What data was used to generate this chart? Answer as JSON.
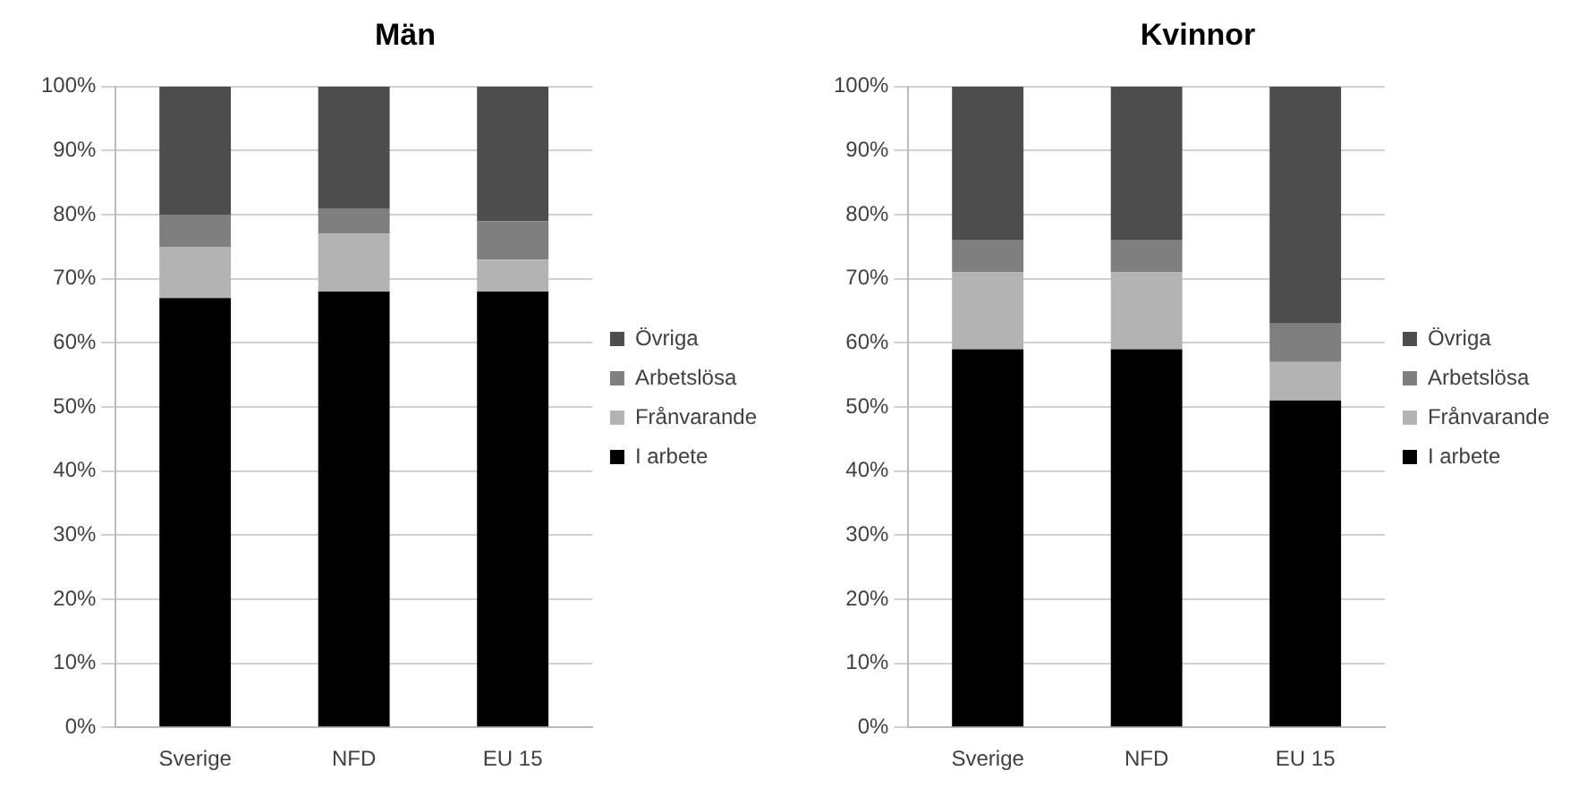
{
  "chart_data": [
    {
      "type": "bar",
      "title": "Män",
      "stacked": true,
      "categories": [
        "Sverige",
        "NFD",
        "EU 15"
      ],
      "series": [
        {
          "name": "I arbete",
          "color": "#000000",
          "values": [
            67,
            68,
            68
          ]
        },
        {
          "name": "Frånvarande",
          "color": "#b3b3b3",
          "values": [
            8,
            9,
            5
          ]
        },
        {
          "name": "Arbetslösa",
          "color": "#7f7f7f",
          "values": [
            5,
            4,
            6
          ]
        },
        {
          "name": "Övriga",
          "color": "#4d4d4d",
          "values": [
            20,
            19,
            21
          ]
        }
      ],
      "ylim": [
        0,
        100
      ],
      "yticks": [
        {
          "value": 0,
          "label": "0%"
        },
        {
          "value": 10,
          "label": "10%"
        },
        {
          "value": 20,
          "label": "20%"
        },
        {
          "value": 30,
          "label": "30%"
        },
        {
          "value": 40,
          "label": "40%"
        },
        {
          "value": 50,
          "label": "50%"
        },
        {
          "value": 60,
          "label": "60%"
        },
        {
          "value": 70,
          "label": "70%"
        },
        {
          "value": 80,
          "label": "80%"
        },
        {
          "value": 90,
          "label": "90%"
        },
        {
          "value": 100,
          "label": "100%"
        }
      ],
      "grid": "y",
      "legend": "right"
    },
    {
      "type": "bar",
      "title": "Kvinnor",
      "stacked": true,
      "categories": [
        "Sverige",
        "NFD",
        "EU 15"
      ],
      "series": [
        {
          "name": "I arbete",
          "color": "#000000",
          "values": [
            59,
            59,
            51
          ]
        },
        {
          "name": "Frånvarande",
          "color": "#b3b3b3",
          "values": [
            12,
            12,
            6
          ]
        },
        {
          "name": "Arbetslösa",
          "color": "#7f7f7f",
          "values": [
            5,
            5,
            6
          ]
        },
        {
          "name": "Övriga",
          "color": "#4d4d4d",
          "values": [
            24,
            24,
            37
          ]
        }
      ],
      "ylim": [
        0,
        100
      ],
      "yticks": [
        {
          "value": 0,
          "label": "0%"
        },
        {
          "value": 10,
          "label": "10%"
        },
        {
          "value": 20,
          "label": "20%"
        },
        {
          "value": 30,
          "label": "30%"
        },
        {
          "value": 40,
          "label": "40%"
        },
        {
          "value": 50,
          "label": "50%"
        },
        {
          "value": 60,
          "label": "60%"
        },
        {
          "value": 70,
          "label": "70%"
        },
        {
          "value": 80,
          "label": "80%"
        },
        {
          "value": 90,
          "label": "90%"
        },
        {
          "value": 100,
          "label": "100%"
        }
      ],
      "grid": "y",
      "legend": "right"
    }
  ]
}
